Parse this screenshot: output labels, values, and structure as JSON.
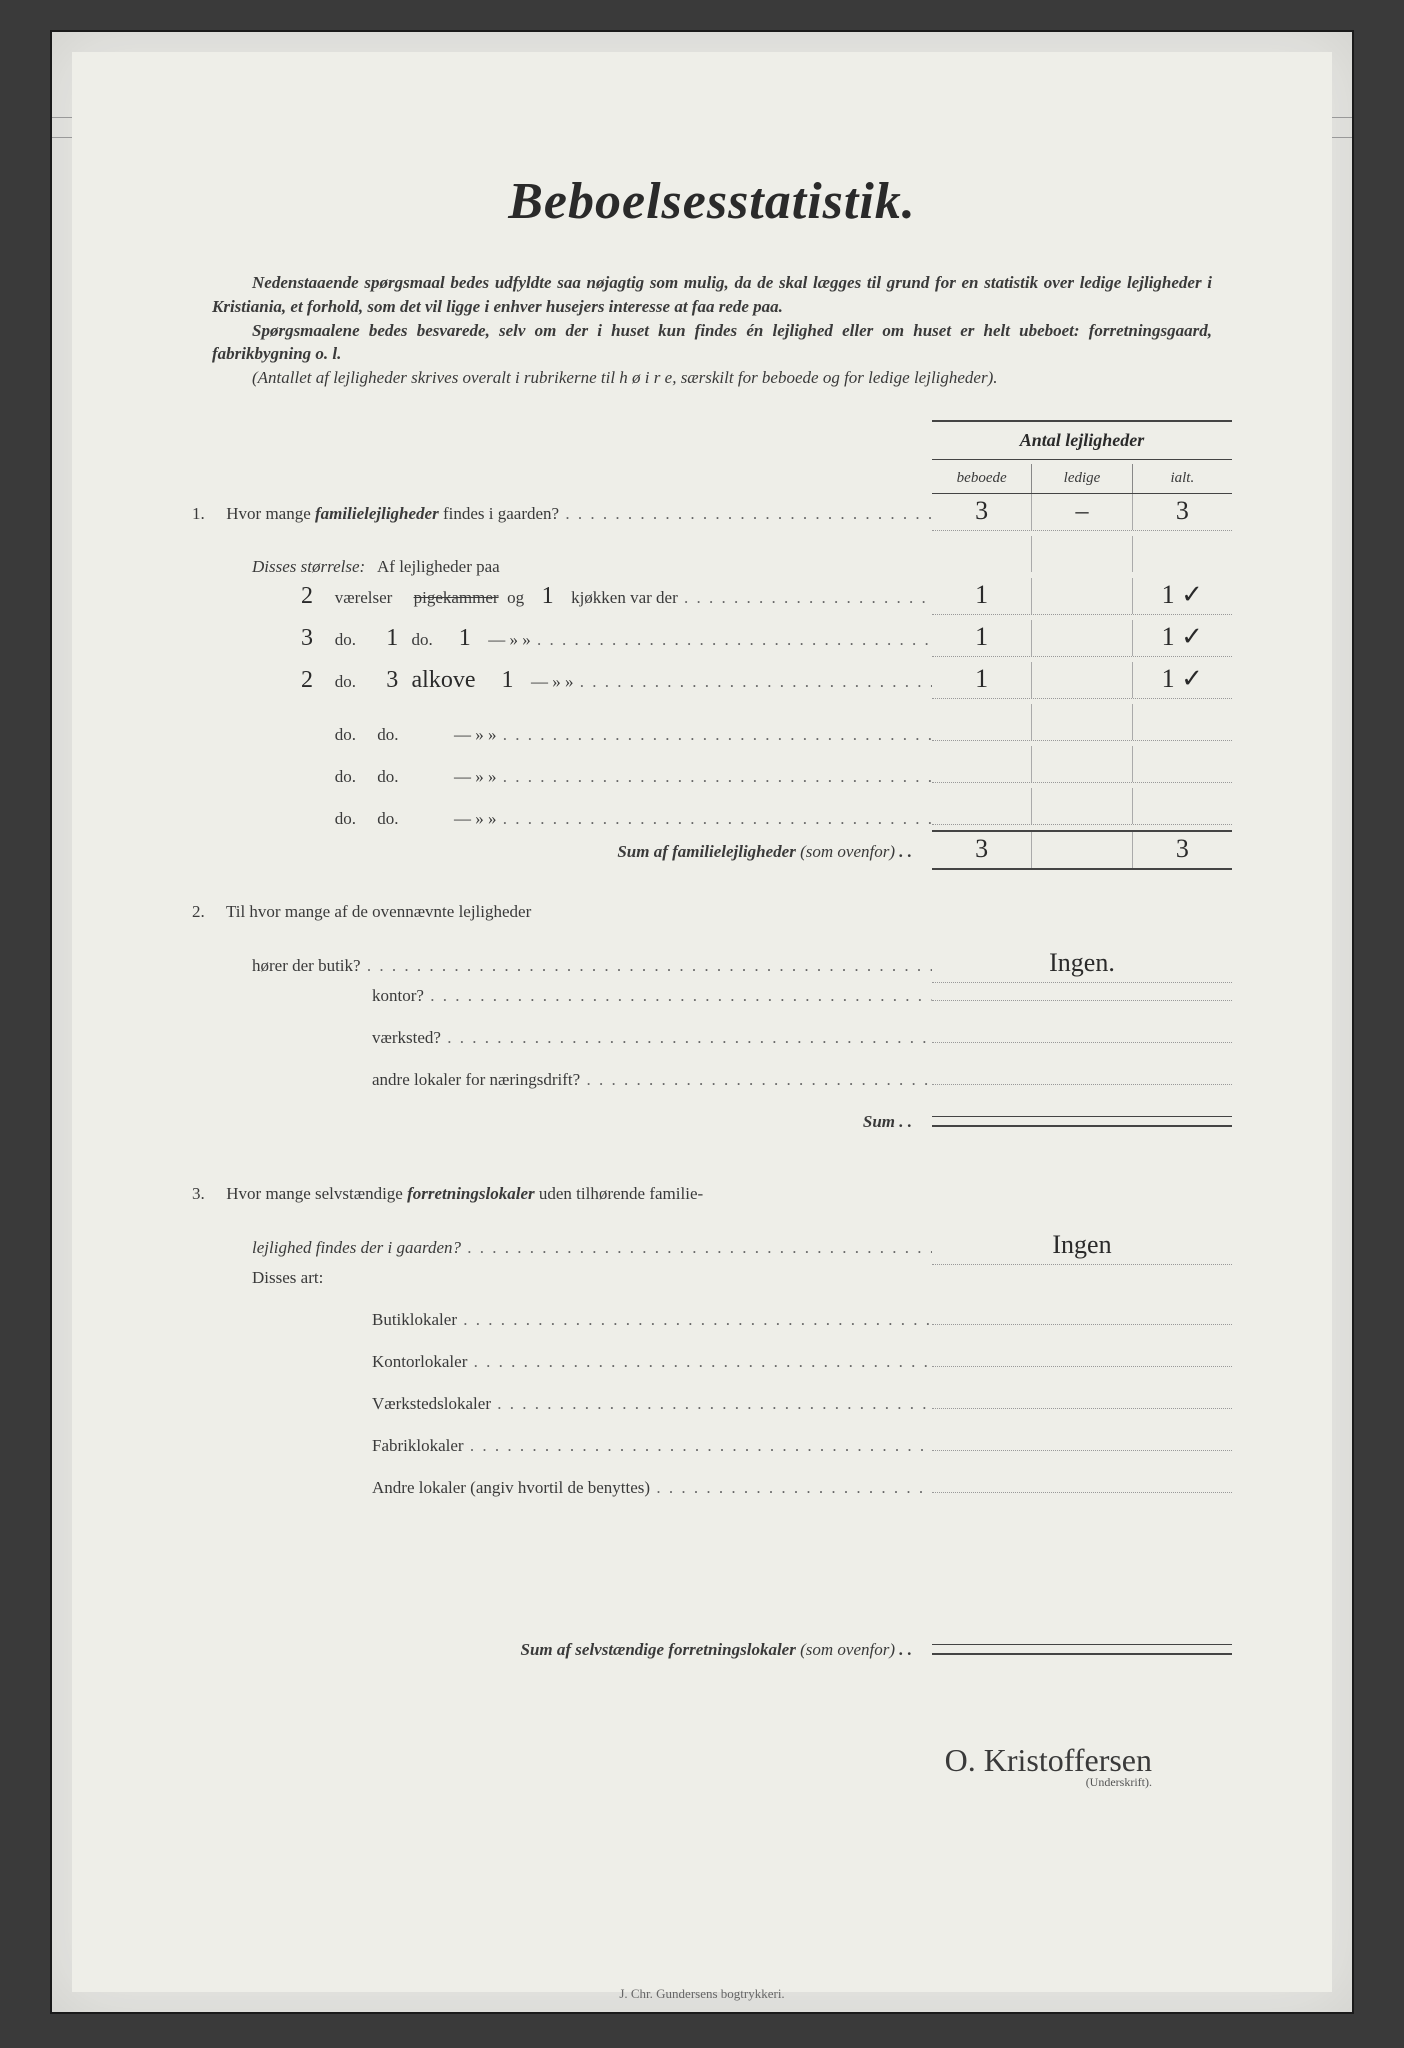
{
  "title": "Beboelsesstatistik.",
  "intro": {
    "p1a": "Nedenstaaende spørgsmaal bedes udfyldte saa nøjagtig som mulig, da de skal lægges til grund for en statistik over ledige lejligheder i Kristiania, et forhold, som det vil ligge i enhver husejers interesse at faa rede paa.",
    "p2a": "Spørgsmaalene bedes besvarede, selv om der i huset kun findes én lejlighed eller om huset er helt ubeboet: forretningsgaard, fabrikbygning o. l.",
    "p3a": "(Antallet af lejligheder skrives overalt i rubrikerne til h ø i r e, særskilt for beboede og for ledige lejligheder)."
  },
  "header": {
    "antal": "Antal lejligheder",
    "beboede": "beboede",
    "ledige": "ledige",
    "ialt": "ialt."
  },
  "q1": {
    "num": "1.",
    "text_a": "Hvor mange ",
    "text_b": "familielejligheder",
    "text_c": " findes i gaarden?",
    "beboede": "3",
    "ledige": "–",
    "ialt": "3",
    "disses": "Disses størrelse:",
    "af": "Af lejligheder paa",
    "rows": [
      {
        "vaer": "2",
        "vtxt": "værelser",
        "pig": "pigekammer",
        "pig_hw": "",
        "og": "og",
        "kj": "1",
        "ktxt": "kjøkken var der",
        "b": "1",
        "l": "",
        "i": "1 ✓"
      },
      {
        "vaer": "3",
        "vtxt": "do.",
        "pig": "do.",
        "pig_hw": "1",
        "og": "",
        "kj": "1",
        "ktxt": "—   »   »",
        "b": "1",
        "l": "",
        "i": "1 ✓"
      },
      {
        "vaer": "2",
        "vtxt": "do.",
        "pig": "alkove",
        "pig_hw": "3",
        "og": "",
        "kj": "1",
        "ktxt": "—   »   »",
        "b": "1",
        "l": "",
        "i": "1 ✓"
      },
      {
        "vaer": "",
        "vtxt": "do.",
        "pig": "do.",
        "pig_hw": "",
        "og": "",
        "kj": "",
        "ktxt": "—   »   »",
        "b": "",
        "l": "",
        "i": ""
      },
      {
        "vaer": "",
        "vtxt": "do.",
        "pig": "do.",
        "pig_hw": "",
        "og": "",
        "kj": "",
        "ktxt": "—   »   »",
        "b": "",
        "l": "",
        "i": ""
      },
      {
        "vaer": "",
        "vtxt": "do.",
        "pig": "do.",
        "pig_hw": "",
        "og": "",
        "kj": "",
        "ktxt": "—   »   »",
        "b": "",
        "l": "",
        "i": ""
      }
    ],
    "sum_label": "Sum af familielejligheder",
    "sum_note": "(som ovenfor)",
    "sum_b": "3",
    "sum_l": "",
    "sum_i": "3"
  },
  "q2": {
    "num": "2.",
    "text": "Til hvor mange af de ovennævnte lejligheder",
    "rows": [
      {
        "label": "hører der butik?",
        "val": "Ingen."
      },
      {
        "label": "kontor?",
        "val": ""
      },
      {
        "label": "værksted?",
        "val": ""
      },
      {
        "label": "andre lokaler for næringsdrift?",
        "val": ""
      }
    ],
    "sum": "Sum"
  },
  "q3": {
    "num": "3.",
    "text_a": "Hvor mange selvstændige ",
    "text_b": "forretningslokaler",
    "text_c": " uden tilhørende familie-",
    "text_d": "lejlighed findes der i gaarden?",
    "val": "Ingen",
    "disses": "Disses art:",
    "rows": [
      {
        "label": "Butiklokaler",
        "val": ""
      },
      {
        "label": "Kontorlokaler",
        "val": ""
      },
      {
        "label": "Værkstedslokaler",
        "val": ""
      },
      {
        "label": "Fabriklokaler",
        "val": ""
      },
      {
        "label": "Andre lokaler (angiv hvortil de benyttes)",
        "val": ""
      }
    ],
    "sum_label": "Sum af selvstændige forretningslokaler",
    "sum_note": "(som ovenfor)"
  },
  "signature": "O. Kristoffersen",
  "signature_label": "(Underskrift).",
  "printer": "J. Chr. Gundersens bogtrykkeri."
}
